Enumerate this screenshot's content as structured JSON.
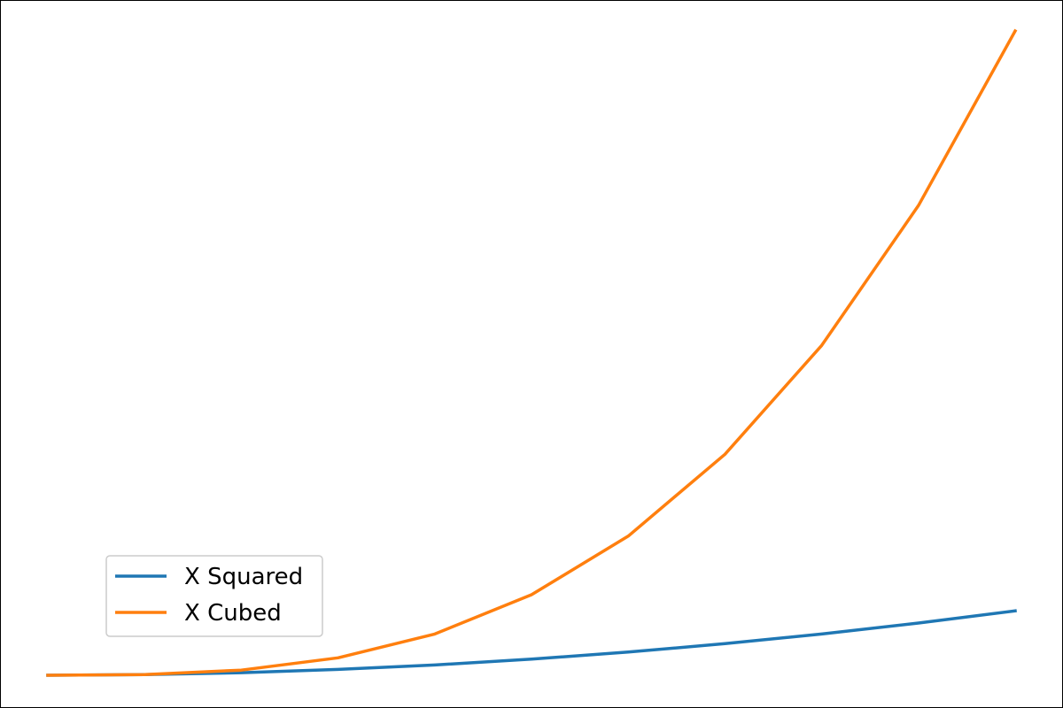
{
  "chart_data": {
    "type": "line",
    "x": [
      0,
      1,
      2,
      3,
      4,
      5,
      6,
      7,
      8,
      9,
      10
    ],
    "series": [
      {
        "name": "X Squared",
        "color": "#1f77b4",
        "values": [
          0,
          1,
          4,
          9,
          16,
          25,
          36,
          49,
          64,
          81,
          100
        ]
      },
      {
        "name": "X Cubed",
        "color": "#ff7f0e",
        "values": [
          0,
          1,
          8,
          27,
          64,
          125,
          216,
          343,
          512,
          729,
          1000
        ]
      }
    ],
    "xlim": [
      -0.5,
      10.5
    ],
    "ylim": [
      -50,
      1050
    ],
    "grid": false,
    "legend_position": "lower-left",
    "axes_visible": false
  }
}
